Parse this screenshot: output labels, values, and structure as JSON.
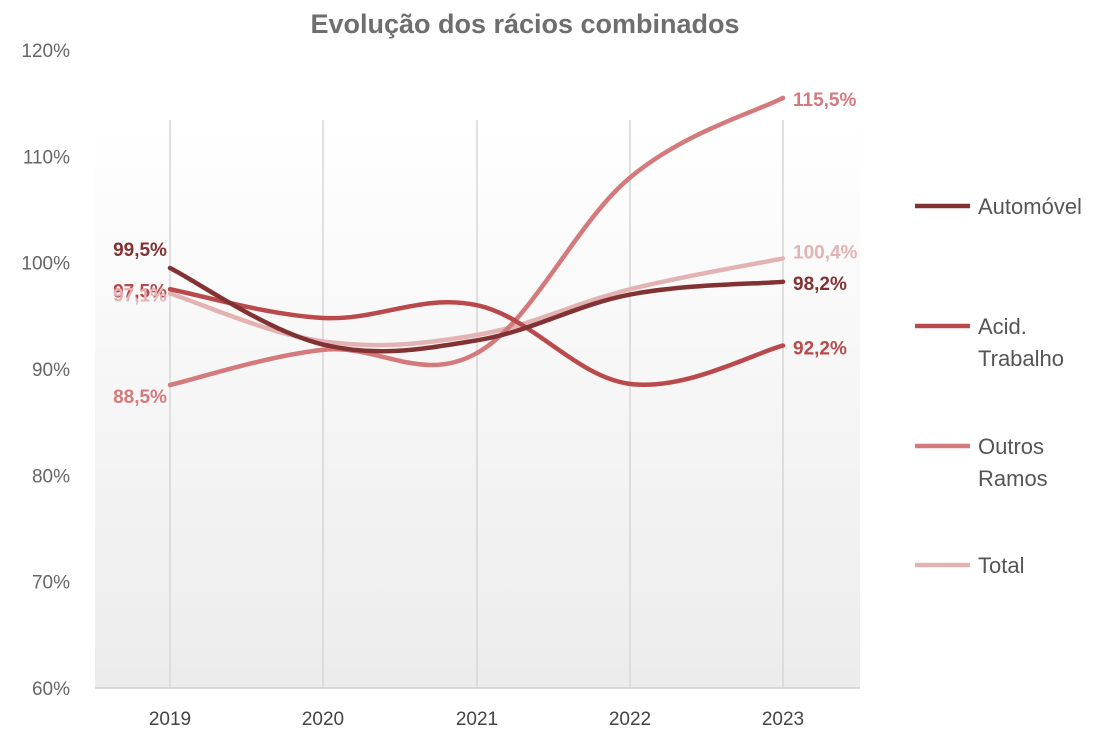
{
  "chart_data": {
    "type": "line",
    "title": "Evolução dos rácios combinados",
    "categories": [
      "2019",
      "2020",
      "2021",
      "2022",
      "2023"
    ],
    "ylim": [
      60,
      120
    ],
    "yticks": [
      60,
      70,
      80,
      90,
      100,
      110,
      120
    ],
    "ytick_labels": [
      "60%",
      "70%",
      "80%",
      "90%",
      "100%",
      "110%",
      "120%"
    ],
    "grid": "vertical",
    "legend_position": "right",
    "series": [
      {
        "name": "Automóvel",
        "legend_lines": [
          "Automóvel"
        ],
        "color": "#833234",
        "values": [
          99.5,
          92.3,
          92.7,
          97.0,
          98.2
        ],
        "labels": [
          {
            "index": 0,
            "text": "99,5%"
          },
          {
            "index": 4,
            "text": "98,2%"
          }
        ]
      },
      {
        "name": "Acid. Trabalho",
        "legend_lines": [
          "Acid.",
          "Trabalho"
        ],
        "color": "#b9494b",
        "values": [
          97.5,
          94.8,
          96.0,
          88.6,
          92.2
        ],
        "labels": [
          {
            "index": 0,
            "text": "97,5%"
          },
          {
            "index": 4,
            "text": "92,2%"
          }
        ]
      },
      {
        "name": "Outros Ramos",
        "legend_lines": [
          "Outros",
          "Ramos"
        ],
        "color": "#d4797c",
        "values": [
          88.5,
          91.8,
          91.5,
          108.0,
          115.5
        ],
        "labels": [
          {
            "index": 0,
            "text": "88,5%"
          },
          {
            "index": 4,
            "text": "115,5%"
          }
        ]
      },
      {
        "name": "Total",
        "legend_lines": [
          "Total"
        ],
        "color": "#e3b3b4",
        "values": [
          97.1,
          92.6,
          93.2,
          97.5,
          100.4
        ],
        "labels": [
          {
            "index": 0,
            "text": "97,1%"
          },
          {
            "index": 4,
            "text": "100,4%"
          }
        ]
      }
    ]
  }
}
